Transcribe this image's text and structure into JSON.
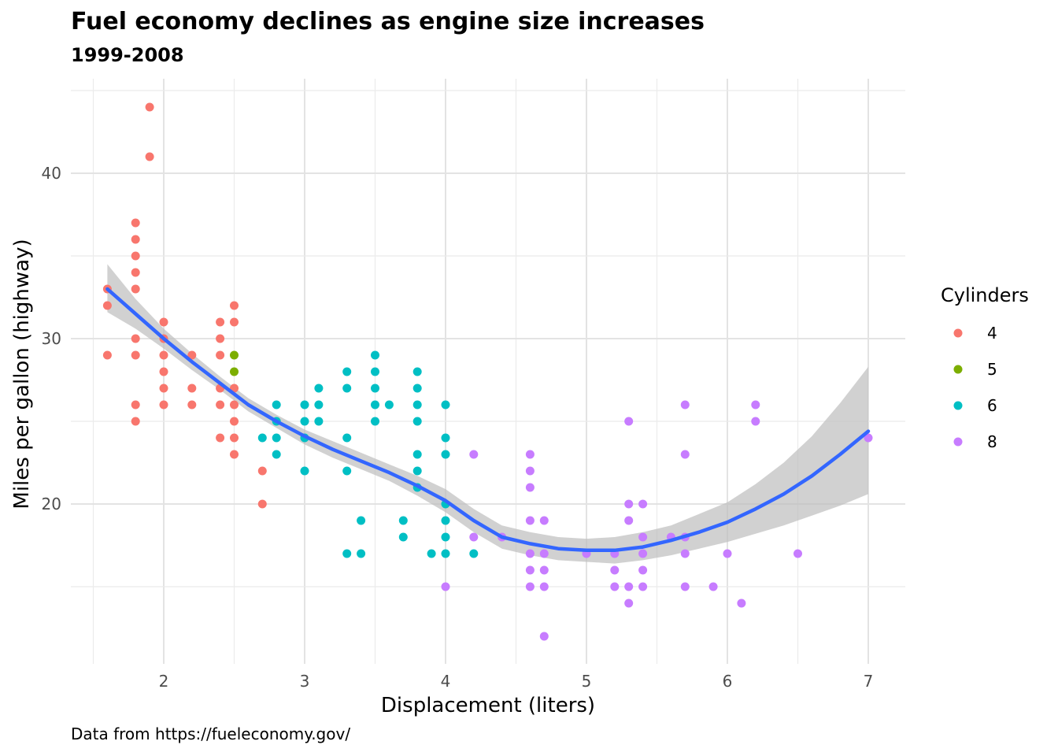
{
  "title": "Fuel economy declines as engine size increases",
  "subtitle": "1999-2008",
  "caption": "Data from https://fueleconomy.gov/",
  "chart_data": {
    "type": "scatter",
    "title": "Fuel economy declines as engine size increases",
    "subtitle": "1999-2008",
    "xlabel": "Displacement (liters)",
    "ylabel": "Miles per gallon (highway)",
    "xlim": [
      1.5,
      7.3
    ],
    "ylim": [
      10.5,
      45.5
    ],
    "x_ticks": [
      2,
      3,
      4,
      5,
      6,
      7
    ],
    "y_ticks": [
      20,
      30,
      40
    ],
    "grid": true,
    "legend": {
      "title": "Cylinders",
      "position": "right"
    },
    "colors": {
      "4": "#F8766D",
      "5": "#7CAE00",
      "6": "#00BFC4",
      "8": "#C77CFF",
      "smooth": "#3366FF",
      "band": "#bdbdbd"
    },
    "series": [
      {
        "name": "4",
        "points": [
          [
            1.6,
            33
          ],
          [
            1.6,
            32
          ],
          [
            1.6,
            29
          ],
          [
            1.8,
            37
          ],
          [
            1.8,
            36
          ],
          [
            1.8,
            35
          ],
          [
            1.8,
            34
          ],
          [
            1.8,
            33
          ],
          [
            1.8,
            30
          ],
          [
            1.8,
            29
          ],
          [
            1.8,
            26
          ],
          [
            1.8,
            25
          ],
          [
            1.9,
            44
          ],
          [
            1.9,
            41
          ],
          [
            2.0,
            31
          ],
          [
            2.0,
            30
          ],
          [
            2.0,
            29
          ],
          [
            2.0,
            28
          ],
          [
            2.0,
            27
          ],
          [
            2.0,
            26
          ],
          [
            2.2,
            29
          ],
          [
            2.2,
            27
          ],
          [
            2.2,
            26
          ],
          [
            2.4,
            31
          ],
          [
            2.4,
            30
          ],
          [
            2.4,
            29
          ],
          [
            2.4,
            27
          ],
          [
            2.4,
            26
          ],
          [
            2.4,
            24
          ],
          [
            2.5,
            32
          ],
          [
            2.5,
            31
          ],
          [
            2.5,
            27
          ],
          [
            2.5,
            26
          ],
          [
            2.5,
            25
          ],
          [
            2.5,
            24
          ],
          [
            2.5,
            23
          ],
          [
            2.7,
            22
          ],
          [
            2.7,
            20
          ]
        ]
      },
      {
        "name": "5",
        "points": [
          [
            2.5,
            29
          ],
          [
            2.5,
            28
          ]
        ]
      },
      {
        "name": "6",
        "points": [
          [
            2.7,
            24
          ],
          [
            2.8,
            26
          ],
          [
            2.8,
            25
          ],
          [
            2.8,
            24
          ],
          [
            2.8,
            23
          ],
          [
            3.0,
            26
          ],
          [
            3.0,
            25
          ],
          [
            3.0,
            24
          ],
          [
            3.0,
            22
          ],
          [
            3.1,
            27
          ],
          [
            3.1,
            26
          ],
          [
            3.1,
            25
          ],
          [
            3.3,
            28
          ],
          [
            3.3,
            27
          ],
          [
            3.3,
            24
          ],
          [
            3.3,
            22
          ],
          [
            3.3,
            17
          ],
          [
            3.4,
            19
          ],
          [
            3.4,
            17
          ],
          [
            3.5,
            29
          ],
          [
            3.5,
            28
          ],
          [
            3.5,
            27
          ],
          [
            3.5,
            26
          ],
          [
            3.5,
            25
          ],
          [
            3.6,
            26
          ],
          [
            3.7,
            19
          ],
          [
            3.7,
            18
          ],
          [
            3.8,
            28
          ],
          [
            3.8,
            27
          ],
          [
            3.8,
            26
          ],
          [
            3.8,
            25
          ],
          [
            3.8,
            23
          ],
          [
            3.8,
            22
          ],
          [
            3.8,
            21
          ],
          [
            3.9,
            17
          ],
          [
            4.0,
            26
          ],
          [
            4.0,
            24
          ],
          [
            4.0,
            23
          ],
          [
            4.0,
            20
          ],
          [
            4.0,
            19
          ],
          [
            4.0,
            18
          ],
          [
            4.0,
            17
          ],
          [
            4.2,
            17
          ]
        ]
      },
      {
        "name": "8",
        "points": [
          [
            4.0,
            15
          ],
          [
            4.2,
            23
          ],
          [
            4.2,
            18
          ],
          [
            4.4,
            18
          ],
          [
            4.6,
            23
          ],
          [
            4.6,
            22
          ],
          [
            4.6,
            21
          ],
          [
            4.6,
            19
          ],
          [
            4.6,
            17
          ],
          [
            4.6,
            16
          ],
          [
            4.6,
            15
          ],
          [
            4.7,
            19
          ],
          [
            4.7,
            17
          ],
          [
            4.7,
            16
          ],
          [
            4.7,
            15
          ],
          [
            4.7,
            12
          ],
          [
            5.0,
            17
          ],
          [
            5.2,
            17
          ],
          [
            5.2,
            16
          ],
          [
            5.2,
            15
          ],
          [
            5.3,
            25
          ],
          [
            5.3,
            20
          ],
          [
            5.3,
            19
          ],
          [
            5.3,
            15
          ],
          [
            5.3,
            14
          ],
          [
            5.4,
            20
          ],
          [
            5.4,
            18
          ],
          [
            5.4,
            17
          ],
          [
            5.4,
            16
          ],
          [
            5.4,
            15
          ],
          [
            5.6,
            18
          ],
          [
            5.7,
            26
          ],
          [
            5.7,
            23
          ],
          [
            5.7,
            18
          ],
          [
            5.7,
            17
          ],
          [
            5.7,
            15
          ],
          [
            5.9,
            15
          ],
          [
            6.0,
            17
          ],
          [
            6.1,
            14
          ],
          [
            6.2,
            26
          ],
          [
            6.2,
            25
          ],
          [
            6.5,
            17
          ],
          [
            7.0,
            24
          ]
        ]
      }
    ],
    "smooth": {
      "x": [
        1.6,
        1.8,
        2.0,
        2.2,
        2.4,
        2.6,
        2.8,
        3.0,
        3.2,
        3.4,
        3.6,
        3.8,
        4.0,
        4.2,
        4.4,
        4.6,
        4.8,
        5.0,
        5.2,
        5.4,
        5.6,
        5.8,
        6.0,
        6.2,
        6.4,
        6.6,
        6.8,
        7.0
      ],
      "y": [
        33.0,
        31.5,
        30.0,
        28.6,
        27.3,
        26.0,
        25.0,
        24.1,
        23.3,
        22.6,
        21.9,
        21.1,
        20.2,
        19.0,
        18.0,
        17.6,
        17.3,
        17.2,
        17.2,
        17.4,
        17.8,
        18.3,
        18.9,
        19.7,
        20.6,
        21.7,
        23.0,
        24.4
      ],
      "ci_low": [
        31.6,
        30.6,
        29.4,
        28.1,
        26.9,
        25.6,
        24.6,
        23.6,
        22.8,
        22.1,
        21.4,
        20.5,
        19.5,
        18.3,
        17.3,
        16.9,
        16.6,
        16.5,
        16.4,
        16.6,
        16.9,
        17.3,
        17.7,
        18.2,
        18.7,
        19.3,
        19.9,
        20.6
      ],
      "ci_high": [
        34.5,
        32.4,
        30.6,
        29.1,
        27.7,
        26.4,
        25.4,
        24.5,
        23.8,
        23.1,
        22.4,
        21.7,
        20.9,
        19.7,
        18.7,
        18.3,
        18.0,
        17.9,
        18.0,
        18.3,
        18.7,
        19.4,
        20.1,
        21.2,
        22.5,
        24.1,
        26.1,
        28.3
      ]
    }
  }
}
